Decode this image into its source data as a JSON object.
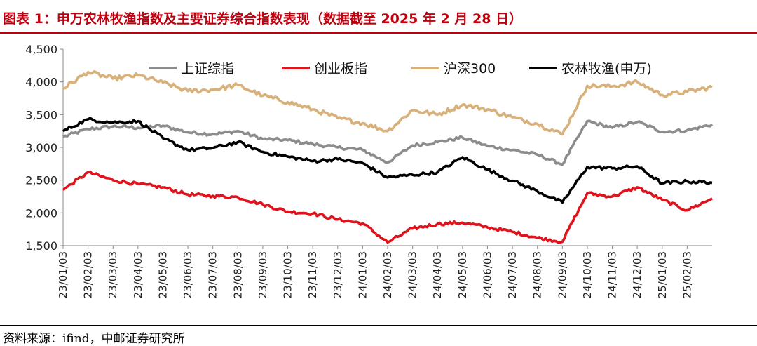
{
  "header": {
    "title": "图表 1：申万农林牧渔指数及主要证券综合指数表现（数据截至 2025 年 2 月 28 日）"
  },
  "footer": {
    "source": "资料来源：ifind，中邮证券研究所"
  },
  "colors": {
    "title_red": "#c0000f",
    "sse": "#8c8c8c",
    "chinext": "#e0121b",
    "csi300": "#d8b07a",
    "agri": "#000000"
  },
  "chart_data": {
    "type": "line",
    "title": "申万农林牧渔指数及主要证券综合指数表现",
    "xlabel": "",
    "ylabel": "",
    "ylim": [
      1500,
      4500
    ],
    "yticks": [
      1500,
      2000,
      2500,
      3000,
      3500,
      4000,
      4500
    ],
    "ytick_labels": [
      "1,500",
      "2,000",
      "2,500",
      "3,000",
      "3,500",
      "4,000",
      "4,500"
    ],
    "x": [
      "23/01/03",
      "23/02/03",
      "23/03/03",
      "23/04/03",
      "23/05/03",
      "23/06/03",
      "23/07/03",
      "23/08/03",
      "23/09/03",
      "23/10/03",
      "23/11/03",
      "23/12/03",
      "24/01/03",
      "24/02/03",
      "24/03/03",
      "24/04/03",
      "24/05/03",
      "24/06/03",
      "24/07/03",
      "24/08/03",
      "24/09/03",
      "24/10/03",
      "24/11/03",
      "24/12/03",
      "25/01/03",
      "25/02/03",
      "25/02/28"
    ],
    "xtick_labels": [
      "23/01/03",
      "23/02/03",
      "23/03/03",
      "23/04/03",
      "23/05/03",
      "23/06/03",
      "23/07/03",
      "23/08/03",
      "23/09/03",
      "23/10/03",
      "23/11/03",
      "23/12/03",
      "24/01/03",
      "24/02/03",
      "24/03/03",
      "24/04/03",
      "24/05/03",
      "24/06/03",
      "24/07/03",
      "24/08/03",
      "24/09/03",
      "24/10/03",
      "24/11/03",
      "24/12/03",
      "25/01/03",
      "25/02/03"
    ],
    "legend_position": "top",
    "series": [
      {
        "name": "上证综指",
        "key": "sse",
        "values": [
          3160,
          3280,
          3320,
          3300,
          3330,
          3230,
          3200,
          3250,
          3130,
          3110,
          3050,
          3000,
          2960,
          2770,
          3030,
          3080,
          3150,
          3020,
          2960,
          2890,
          2740,
          3400,
          3300,
          3390,
          3240,
          3260,
          3350
        ]
      },
      {
        "name": "创业板指",
        "key": "chinext",
        "values": [
          2350,
          2620,
          2500,
          2440,
          2390,
          2280,
          2260,
          2240,
          2130,
          2020,
          1990,
          1900,
          1840,
          1550,
          1760,
          1830,
          1850,
          1780,
          1710,
          1620,
          1560,
          2300,
          2250,
          2390,
          2200,
          2040,
          2220
        ]
      },
      {
        "name": "沪深300",
        "key": "csi300",
        "values": [
          3900,
          4150,
          4050,
          4100,
          3990,
          3860,
          3880,
          3950,
          3790,
          3690,
          3580,
          3450,
          3370,
          3250,
          3570,
          3500,
          3650,
          3580,
          3460,
          3360,
          3200,
          3940,
          3930,
          4000,
          3800,
          3850,
          3920
        ]
      },
      {
        "name": "农林牧渔(申万)",
        "key": "agri",
        "values": [
          3250,
          3430,
          3380,
          3400,
          3140,
          2960,
          2990,
          3080,
          2930,
          2860,
          2790,
          2820,
          2760,
          2540,
          2580,
          2620,
          2850,
          2660,
          2490,
          2330,
          2160,
          2700,
          2680,
          2710,
          2450,
          2480,
          2460
        ]
      }
    ]
  }
}
